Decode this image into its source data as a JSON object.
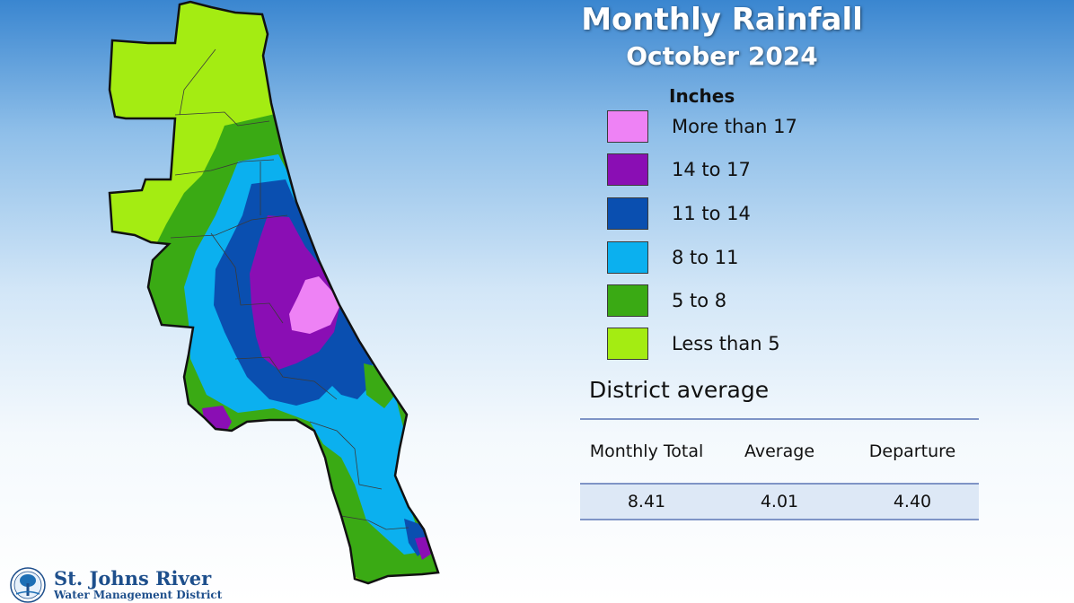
{
  "title": "Monthly Rainfall",
  "subtitle": "October 2024",
  "legend": {
    "title": "Inches",
    "items": [
      {
        "label": "More than 17",
        "color": "#ee82f5"
      },
      {
        "label": "14 to 17",
        "color": "#8a0eb4"
      },
      {
        "label": "11 to 14",
        "color": "#0a4fb0"
      },
      {
        "label": "8 to 11",
        "color": "#0bb0ef"
      },
      {
        "label": "5 to 8",
        "color": "#3aaa14"
      },
      {
        "label": "Less than 5",
        "color": "#a4ec12"
      }
    ]
  },
  "district_average": {
    "title": "District average",
    "headers": [
      "Monthly Total",
      "Average",
      "Departure"
    ],
    "values": [
      "8.41",
      "4.01",
      "4.40"
    ]
  },
  "organization": {
    "name_line1": "St. Johns River",
    "name_line2": "Water Management District"
  }
}
